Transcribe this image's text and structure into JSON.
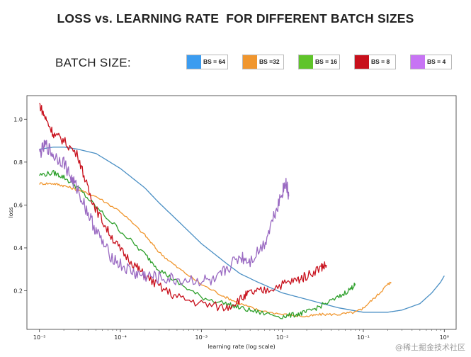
{
  "header": {
    "title": "LOSS vs. LEARNING RATE  FOR DIFFERENT BATCH SIZES",
    "batch_size_label": "BATCH SIZE:"
  },
  "legend": [
    {
      "label": "BS = 64",
      "color": "#3b9cf0"
    },
    {
      "label": "BS =32",
      "color": "#f0962e"
    },
    {
      "label": "BS = 16",
      "color": "#5fc42a"
    },
    {
      "label": "BS = 8",
      "color": "#c8101c"
    },
    {
      "label": "BS = 4",
      "color": "#c774f4"
    }
  ],
  "watermark": "@稀土掘金技术社区",
  "chart_data": {
    "type": "line",
    "title": "LOSS vs. LEARNING RATE  FOR DIFFERENT BATCH SIZES",
    "xlabel": "learning rate (log scale)",
    "ylabel": "loss",
    "xscale": "log",
    "xlim": [
      7e-06,
      1.4
    ],
    "ylim": [
      0.02,
      1.11
    ],
    "xticks": [
      {
        "value": 1e-05,
        "label": "10⁻⁵"
      },
      {
        "value": 0.0001,
        "label": "10⁻⁴"
      },
      {
        "value": 0.001,
        "label": "10⁻³"
      },
      {
        "value": 0.01,
        "label": "10⁻²"
      },
      {
        "value": 0.1,
        "label": "10⁻¹"
      },
      {
        "value": 1,
        "label": "10⁰"
      }
    ],
    "yticks": [
      {
        "value": 0.2,
        "label": "0.2"
      },
      {
        "value": 0.4,
        "label": "0.4"
      },
      {
        "value": 0.6,
        "label": "0.6"
      },
      {
        "value": 0.8,
        "label": "0.8"
      },
      {
        "value": 1.0,
        "label": "1.0"
      }
    ],
    "series": [
      {
        "name": "BS = 64",
        "color": "#4a8fc4",
        "x": [
          1e-05,
          1.5e-05,
          2e-05,
          3e-05,
          5e-05,
          0.0001,
          0.0002,
          0.0003,
          0.0005,
          0.001,
          0.002,
          0.003,
          0.005,
          0.01,
          0.02,
          0.05,
          0.1,
          0.15,
          0.2,
          0.3,
          0.5,
          0.7,
          0.9,
          1.0
        ],
        "y": [
          0.86,
          0.87,
          0.87,
          0.86,
          0.84,
          0.77,
          0.68,
          0.61,
          0.53,
          0.42,
          0.33,
          0.28,
          0.24,
          0.19,
          0.16,
          0.12,
          0.1,
          0.1,
          0.1,
          0.11,
          0.14,
          0.19,
          0.24,
          0.27
        ]
      },
      {
        "name": "BS =32",
        "color": "#f0962e",
        "x": [
          1e-05,
          1.5e-05,
          2e-05,
          3e-05,
          5e-05,
          0.0001,
          0.0002,
          0.0003,
          0.0005,
          0.001,
          0.002,
          0.003,
          0.005,
          0.01,
          0.02,
          0.03,
          0.05,
          0.08,
          0.1,
          0.15,
          0.2,
          0.22
        ],
        "y": [
          0.7,
          0.7,
          0.69,
          0.67,
          0.64,
          0.57,
          0.46,
          0.38,
          0.31,
          0.23,
          0.17,
          0.14,
          0.11,
          0.09,
          0.08,
          0.09,
          0.09,
          0.1,
          0.12,
          0.18,
          0.23,
          0.24
        ]
      },
      {
        "name": "BS = 16",
        "color": "#2ea02c",
        "x": [
          1e-05,
          1.5e-05,
          2e-05,
          3e-05,
          5e-05,
          0.0001,
          0.0002,
          0.0003,
          0.0005,
          0.001,
          0.002,
          0.003,
          0.005,
          0.01,
          0.015,
          0.02,
          0.03,
          0.05,
          0.07,
          0.08
        ],
        "y": [
          0.74,
          0.75,
          0.73,
          0.68,
          0.59,
          0.48,
          0.37,
          0.3,
          0.24,
          0.17,
          0.14,
          0.12,
          0.1,
          0.08,
          0.09,
          0.1,
          0.13,
          0.17,
          0.21,
          0.23
        ]
      },
      {
        "name": "BS = 8",
        "color": "#c8101c",
        "x": [
          1e-05,
          1.2e-05,
          1.5e-05,
          2e-05,
          3e-05,
          4e-05,
          5e-05,
          7e-05,
          0.0001,
          0.00015,
          0.0002,
          0.0003,
          0.0005,
          0.001,
          0.002,
          0.003,
          0.004,
          0.006,
          0.01,
          0.015,
          0.02,
          0.03,
          0.035
        ],
        "y": [
          1.07,
          1.0,
          0.93,
          0.9,
          0.83,
          0.67,
          0.58,
          0.48,
          0.39,
          0.32,
          0.27,
          0.22,
          0.17,
          0.14,
          0.12,
          0.16,
          0.19,
          0.2,
          0.23,
          0.25,
          0.27,
          0.31,
          0.32
        ]
      },
      {
        "name": "BS = 4",
        "color": "#9a6ac2",
        "x": [
          1e-05,
          1.2e-05,
          1.5e-05,
          2e-05,
          2.5e-05,
          3e-05,
          4e-05,
          5e-05,
          7e-05,
          0.0001,
          0.00015,
          0.0002,
          0.0003,
          0.0005,
          0.001,
          0.0015,
          0.002,
          0.003,
          0.004,
          0.006,
          0.008,
          0.01,
          0.011,
          0.012
        ],
        "y": [
          0.84,
          0.88,
          0.83,
          0.8,
          0.72,
          0.67,
          0.56,
          0.48,
          0.38,
          0.32,
          0.28,
          0.27,
          0.26,
          0.25,
          0.25,
          0.24,
          0.3,
          0.36,
          0.34,
          0.42,
          0.56,
          0.66,
          0.71,
          0.64
        ]
      }
    ]
  }
}
